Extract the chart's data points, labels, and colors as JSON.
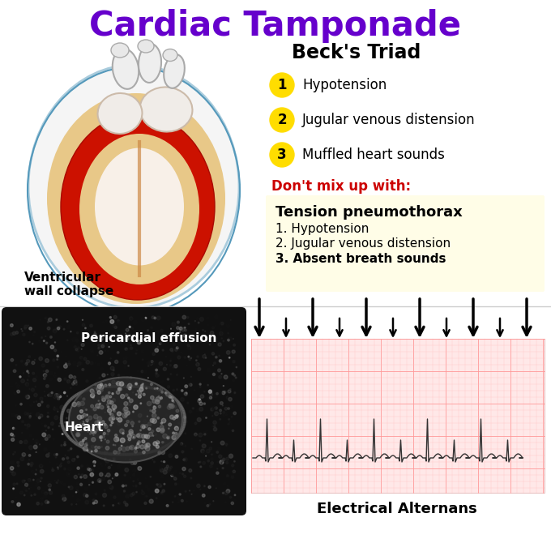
{
  "title": "Cardiac Tamponade",
  "title_color": "#6600cc",
  "title_fontsize": 30,
  "becks_triad_title": "Beck's Triad",
  "becks_items": [
    "Hypotension",
    "Jugular venous distension",
    "Muffled heart sounds"
  ],
  "dont_mix_label": "Don't mix up with:",
  "dont_mix_color": "#cc0000",
  "tension_title": "Tension pneumothorax",
  "tension_items": [
    "1. Hypotension",
    "2. Jugular venous distension",
    "3. Absent breath sounds"
  ],
  "tension_bg_color": "#fffde7",
  "ventricular_label": "Ventricular\nwall collapse",
  "pericardial_label": "Pericardial effusion",
  "heart_label": "Heart",
  "ecg_label": "Electrical Alternans",
  "yellow_circle_color": "#ffdd00",
  "bg_color": "#ffffff",
  "ecg_bg_color": "#ffe8e8",
  "ecg_grid_color": "#ffbbbb",
  "ecg_line_color": "#333333"
}
